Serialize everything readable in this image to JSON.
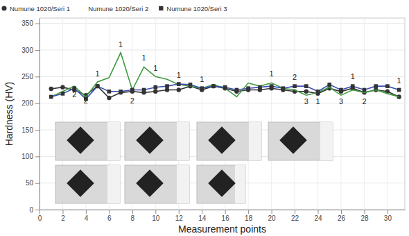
{
  "chart_data": {
    "type": "line",
    "x_label": "Measurement points",
    "y_label": "Hardness (HV)",
    "x": [
      1,
      2,
      3,
      4,
      5,
      6,
      7,
      8,
      9,
      10,
      11,
      12,
      13,
      14,
      15,
      16,
      17,
      18,
      19,
      20,
      21,
      22,
      23,
      24,
      25,
      26,
      27,
      28,
      29,
      30,
      31
    ],
    "series": [
      {
        "name": "Numune 1020/Seri 1",
        "color": "#333333",
        "marker": "circle",
        "values": [
          227,
          230,
          225,
          215,
          232,
          210,
          220,
          222,
          220,
          222,
          225,
          225,
          232,
          225,
          232,
          228,
          222,
          225,
          225,
          228,
          225,
          222,
          222,
          218,
          228,
          222,
          228,
          220,
          225,
          222,
          212
        ]
      },
      {
        "name": "Numune 1020/Seri 2",
        "color": "#3f9b3f",
        "marker": "plus",
        "values": [
          212,
          222,
          232,
          212,
          240,
          248,
          295,
          225,
          268,
          250,
          245,
          235,
          232,
          228,
          235,
          228,
          212,
          238,
          232,
          238,
          228,
          225,
          215,
          220,
          230,
          215,
          225,
          220,
          225,
          218,
          212
        ]
      },
      {
        "name": "Numune 1020/Seri 3",
        "color": "#3b4fb3",
        "marker": "square",
        "values": [
          212,
          218,
          228,
          208,
          232,
          222,
          222,
          225,
          225,
          230,
          232,
          236,
          235,
          228,
          232,
          230,
          225,
          228,
          230,
          232,
          228,
          232,
          232,
          222,
          235,
          225,
          232,
          225,
          232,
          232,
          225
        ]
      }
    ],
    "annotations": [
      {
        "text": "2",
        "x": 3,
        "y": 211
      },
      {
        "text": "2",
        "x": 4,
        "y": 199
      },
      {
        "text": "1",
        "x": 5,
        "y": 251
      },
      {
        "text": "1",
        "x": 7,
        "y": 305
      },
      {
        "text": "2",
        "x": 8,
        "y": 200
      },
      {
        "text": "1",
        "x": 9,
        "y": 280
      },
      {
        "text": "1",
        "x": 10,
        "y": 261
      },
      {
        "text": "1",
        "x": 12,
        "y": 248
      },
      {
        "text": "1",
        "x": 14,
        "y": 240
      },
      {
        "text": "1",
        "x": 20,
        "y": 250
      },
      {
        "text": "2",
        "x": 22,
        "y": 244
      },
      {
        "text": "3",
        "x": 23,
        "y": 198
      },
      {
        "text": "1",
        "x": 24,
        "y": 198
      },
      {
        "text": "3",
        "x": 26,
        "y": 198
      },
      {
        "text": "1",
        "x": 27,
        "y": 245
      },
      {
        "text": "2",
        "x": 28,
        "y": 198
      },
      {
        "text": "1",
        "x": 31,
        "y": 237
      }
    ],
    "xlim": [
      0,
      31.5
    ],
    "ylim": [
      0,
      360
    ],
    "xticks": [
      0,
      2,
      4,
      6,
      8,
      10,
      12,
      14,
      16,
      18,
      20,
      22,
      24,
      26,
      28,
      30
    ],
    "yticks": [
      0,
      50,
      100,
      150,
      200,
      250,
      300,
      350
    ],
    "grid": true,
    "legend": "top"
  }
}
